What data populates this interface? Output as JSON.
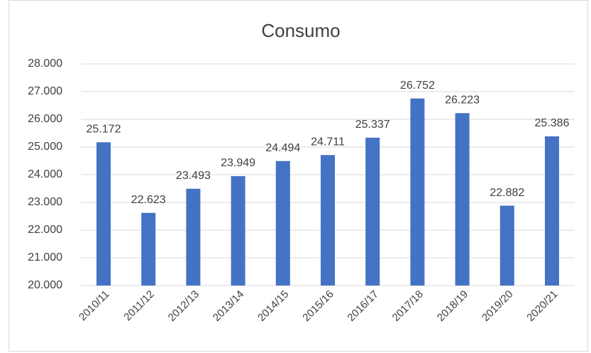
{
  "chart_data": {
    "type": "bar",
    "title": "Consumo",
    "categories": [
      "2010/11",
      "2011/12",
      "2012/13",
      "2013/14",
      "2014/15",
      "2015/16",
      "2016/17",
      "2017/18",
      "2018/19",
      "2019/20",
      "2020/21"
    ],
    "values": [
      25172,
      22623,
      23493,
      23949,
      24494,
      24711,
      25337,
      26752,
      26223,
      22882,
      25386
    ],
    "value_labels": [
      "25.172",
      "22.623",
      "23.493",
      "23.949",
      "24.494",
      "24.711",
      "25.337",
      "26.752",
      "26.223",
      "22.882",
      "25.386"
    ],
    "color": "#4472c4",
    "ylim": [
      20000,
      28000
    ],
    "yticks": [
      {
        "value": 20000,
        "label": "20.000"
      },
      {
        "value": 21000,
        "label": "21.000"
      },
      {
        "value": 22000,
        "label": "22.000"
      },
      {
        "value": 23000,
        "label": "23.000"
      },
      {
        "value": 24000,
        "label": "24.000"
      },
      {
        "value": 25000,
        "label": "25.000"
      },
      {
        "value": 26000,
        "label": "26.000"
      },
      {
        "value": 27000,
        "label": "27.000"
      },
      {
        "value": 28000,
        "label": "28.000"
      }
    ],
    "grid": true
  }
}
